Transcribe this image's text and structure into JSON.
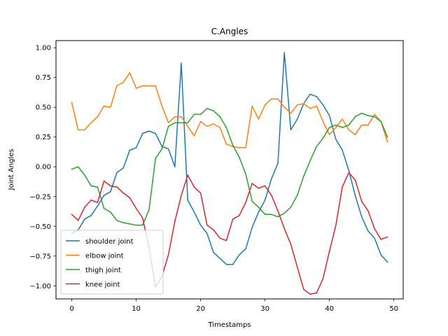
{
  "chart_data": {
    "type": "line",
    "title": "C.Angles",
    "xlabel": "Timestamps",
    "ylabel": "Joint Angles",
    "xlim": [
      -2.45,
      51.45
    ],
    "ylim": [
      -1.11,
      1.06
    ],
    "xticks": [
      0,
      10,
      20,
      30,
      40,
      50
    ],
    "xtick_labels": [
      "0",
      "10",
      "20",
      "30",
      "40",
      "50"
    ],
    "yticks": [
      -1.0,
      -0.75,
      -0.5,
      -0.25,
      0.0,
      0.25,
      0.5,
      0.75,
      1.0
    ],
    "ytick_labels": [
      "−1.00",
      "−0.75",
      "−0.50",
      "−0.25",
      "0.00",
      "0.25",
      "0.50",
      "0.75",
      "1.00"
    ],
    "grid": false,
    "legend_position": "lower-left",
    "x": [
      0,
      1,
      2,
      3,
      4,
      5,
      6,
      7,
      8,
      9,
      10,
      11,
      12,
      13,
      14,
      15,
      16,
      17,
      18,
      19,
      20,
      21,
      22,
      23,
      24,
      25,
      26,
      27,
      28,
      29,
      30,
      31,
      32,
      33,
      34,
      35,
      36,
      37,
      38,
      39,
      40,
      41,
      42,
      43,
      44,
      45,
      46,
      47,
      48,
      49
    ],
    "series": [
      {
        "name": "shoulder joint",
        "color": "#1f77b4",
        "values": [
          -0.56,
          -0.53,
          -0.44,
          -0.41,
          -0.33,
          -0.24,
          -0.21,
          -0.05,
          -0.01,
          0.14,
          0.16,
          0.28,
          0.3,
          0.28,
          0.17,
          0.15,
          0.0,
          0.87,
          -0.28,
          -0.38,
          -0.49,
          -0.56,
          -0.72,
          -0.77,
          -0.82,
          -0.82,
          -0.74,
          -0.69,
          -0.51,
          -0.38,
          -0.28,
          -0.1,
          0.03,
          0.96,
          0.31,
          0.4,
          0.53,
          0.61,
          0.59,
          0.52,
          0.43,
          0.23,
          0.14,
          -0.03,
          -0.24,
          -0.42,
          -0.54,
          -0.6,
          -0.74,
          -0.8
        ]
      },
      {
        "name": "elbow joint",
        "color": "#ff7f0e",
        "values": [
          0.54,
          0.31,
          0.31,
          0.37,
          0.42,
          0.51,
          0.5,
          0.68,
          0.71,
          0.79,
          0.66,
          0.68,
          0.68,
          0.68,
          0.51,
          0.37,
          0.42,
          0.42,
          0.34,
          0.26,
          0.38,
          0.34,
          0.36,
          0.33,
          0.19,
          0.17,
          0.16,
          0.16,
          0.51,
          0.4,
          0.52,
          0.57,
          0.57,
          0.5,
          0.45,
          0.52,
          0.53,
          0.49,
          0.51,
          0.38,
          0.27,
          0.33,
          0.4,
          0.31,
          0.27,
          0.35,
          0.35,
          0.44,
          0.38,
          0.21
        ]
      },
      {
        "name": "thigh joint",
        "color": "#2ca02c",
        "values": [
          -0.02,
          0.0,
          -0.07,
          -0.16,
          -0.17,
          -0.35,
          -0.38,
          -0.45,
          -0.47,
          -0.48,
          -0.49,
          -0.49,
          -0.36,
          0.07,
          0.15,
          0.34,
          0.37,
          0.37,
          0.37,
          0.44,
          0.44,
          0.49,
          0.47,
          0.42,
          0.33,
          0.18,
          0.08,
          -0.06,
          -0.29,
          -0.34,
          -0.4,
          -0.4,
          -0.42,
          -0.39,
          -0.34,
          -0.24,
          -0.08,
          0.05,
          0.17,
          0.24,
          0.33,
          0.35,
          0.33,
          0.35,
          0.42,
          0.45,
          0.43,
          0.42,
          0.38,
          0.25
        ]
      },
      {
        "name": "knee joint",
        "color": "#d62728",
        "values": [
          -0.4,
          -0.45,
          -0.34,
          -0.28,
          -0.3,
          -0.12,
          -0.16,
          -0.17,
          -0.22,
          -0.26,
          -0.35,
          -0.43,
          -0.68,
          -1.01,
          -0.92,
          -0.74,
          -0.46,
          -0.24,
          -0.07,
          -0.17,
          -0.22,
          -0.49,
          -0.53,
          -0.6,
          -0.62,
          -0.44,
          -0.41,
          -0.3,
          -0.14,
          -0.18,
          -0.16,
          -0.24,
          -0.37,
          -0.52,
          -0.65,
          -0.84,
          -1.03,
          -1.07,
          -1.06,
          -0.94,
          -0.71,
          -0.49,
          -0.17,
          -0.05,
          -0.11,
          -0.29,
          -0.37,
          -0.52,
          -0.61,
          -0.59
        ]
      }
    ]
  }
}
